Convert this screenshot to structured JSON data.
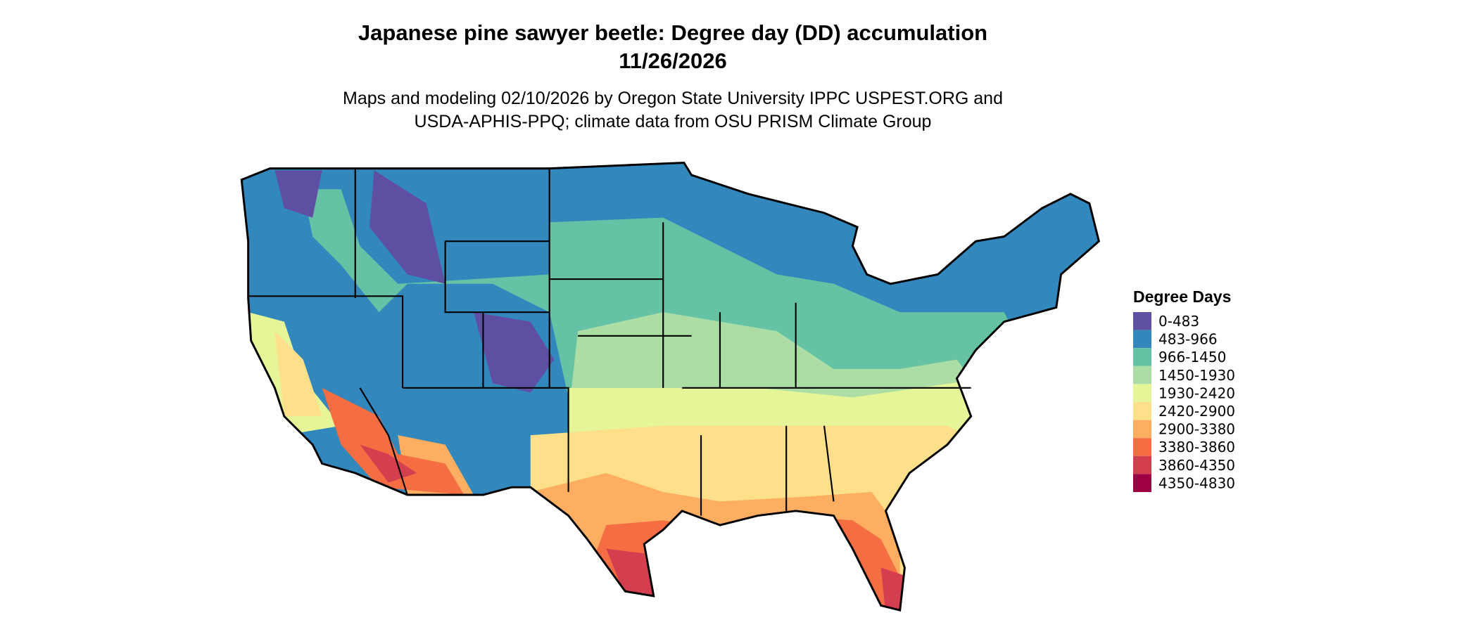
{
  "header": {
    "title": [
      "Japanese pine sawyer beetle: Degree day (DD) accumulation",
      "11/26/2026"
    ],
    "subtitle": [
      "Maps and modeling 02/10/2026 by Oregon State University IPPC USPEST.ORG and",
      "USDA-APHIS-PPQ; climate data from OSU PRISM Climate Group"
    ]
  },
  "legend": {
    "title": "Degree Days",
    "items": [
      {
        "label": "0-483",
        "color": "#5e4fa2"
      },
      {
        "label": "483-966",
        "color": "#3288bd"
      },
      {
        "label": "966-1450",
        "color": "#66c2a5"
      },
      {
        "label": "1450-1930",
        "color": "#abdda4"
      },
      {
        "label": "1930-2420",
        "color": "#e6f598"
      },
      {
        "label": "2420-2900",
        "color": "#fee08b"
      },
      {
        "label": "2900-3380",
        "color": "#fdae61"
      },
      {
        "label": "3380-3860",
        "color": "#f46d43"
      },
      {
        "label": "3860-4350",
        "color": "#d53e4f"
      },
      {
        "label": "4350-4830",
        "color": "#9e0142"
      }
    ]
  }
}
